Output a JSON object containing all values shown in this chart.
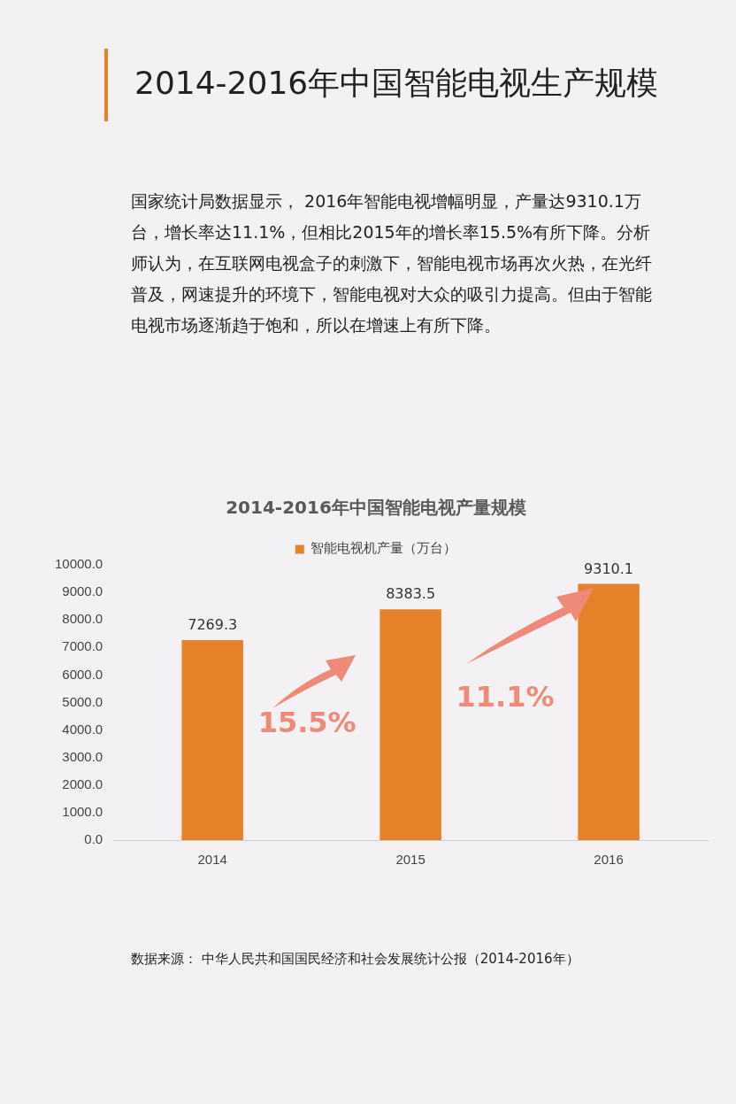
{
  "chart_data": {
    "type": "bar",
    "title": "2014-2016年中国智能电视产量规模",
    "categories": [
      "2014",
      "2015",
      "2016"
    ],
    "series": [
      {
        "name": "智能电视机产量（万台）",
        "color": "#e6812a",
        "values": [
          7269.3,
          8383.5,
          9310.1
        ]
      }
    ],
    "ylim": [
      0,
      10000
    ],
    "yticks": [
      {
        "value": 0,
        "label": "0.0"
      },
      {
        "value": 1000,
        "label": "1000.0"
      },
      {
        "value": 2000,
        "label": "2000.0"
      },
      {
        "value": 3000,
        "label": "3000.0"
      },
      {
        "value": 4000,
        "label": "4000.0"
      },
      {
        "value": 5000,
        "label": "5000.0"
      },
      {
        "value": 6000,
        "label": "6000.0"
      },
      {
        "value": 7000,
        "label": "7000.0"
      },
      {
        "value": 8000,
        "label": "8000.0"
      },
      {
        "value": 9000,
        "label": "9000.0"
      },
      {
        "value": 10000,
        "label": "10000.0"
      }
    ],
    "grid": false,
    "legend": "top",
    "data_labels": true,
    "annotations": [
      "2014-2016年中国智能电视生产规模",
      "国家统计局数据显示， 2016年智能电视增幅明显，产量达9310.1万台，增长率达11.1%，但相比2015年的增长率15.5%有所下降。分析师认为，在互联网电视盒子的刺激下，智能电视市场再次火热，在光纤普及，网速提升的环境下，智能电视对大众的吸引力提高。但由于智能电视市场逐渐趋于饱和，所以在增速上有所下降。",
      "15.5%",
      "11.1%",
      "数据来源： 中华人民共和国国民经济和社会发展统计公报（2014-2016年）"
    ]
  }
}
